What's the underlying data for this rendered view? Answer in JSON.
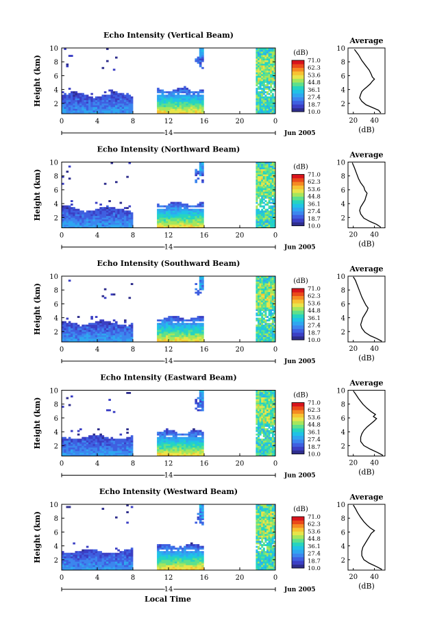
{
  "colors": {
    "scale": [
      "#2e2d8c",
      "#3b3fc4",
      "#3f5fe0",
      "#3c86ee",
      "#2fa6f0",
      "#20c2e6",
      "#26d4c0",
      "#5ee08c",
      "#a6e65c",
      "#e8e44a",
      "#f7c232",
      "#f58a22",
      "#ea4a1a",
      "#d8141c"
    ],
    "axis": "#000000",
    "profile_line": "#000000"
  },
  "chart_data": [
    {
      "type": "heatmap",
      "title": "Echo Intensity (Vertical Beam)",
      "ylabel": "Height (km)",
      "xlabel": "",
      "xlim": [
        0,
        24
      ],
      "ylim": [
        0.5,
        10
      ],
      "x_ticks": [
        "0",
        "4",
        "8",
        "12",
        "16",
        "20",
        "0"
      ],
      "y_ticks": [
        "2",
        "4",
        "6",
        "8",
        "10"
      ],
      "date_center": "14",
      "date_right": "Jun 2005",
      "colorbar": {
        "unit": "(dB)",
        "labels": [
          "71.0",
          "62.3",
          "53.6",
          "44.8",
          "36.1",
          "27.4",
          "18.7",
          "10.0"
        ],
        "range": [
          10,
          71
        ]
      },
      "segments": [
        {
          "start": 0,
          "end": 8,
          "kind": "night"
        },
        {
          "start": 10.7,
          "end": 15.8,
          "kind": "day"
        },
        {
          "start": 21.8,
          "end": 24,
          "kind": "late"
        }
      ],
      "profile": {
        "title": "Average",
        "xlabel": "(dB)",
        "x_ticks": [
          "20",
          "40"
        ],
        "xlim": [
          15,
          50
        ],
        "y_ticks": [
          "2",
          "4",
          "6",
          "8",
          "10"
        ],
        "ylim": [
          0.5,
          10
        ],
        "points": [
          [
            46,
            0.6
          ],
          [
            44,
            1.0
          ],
          [
            38,
            1.4
          ],
          [
            32,
            1.8
          ],
          [
            28,
            2.3
          ],
          [
            26,
            2.8
          ],
          [
            27,
            3.3
          ],
          [
            28,
            3.7
          ],
          [
            30,
            4.0
          ],
          [
            33,
            4.4
          ],
          [
            36,
            4.8
          ],
          [
            38,
            5.2
          ],
          [
            40,
            5.5
          ],
          [
            38,
            5.8
          ],
          [
            37,
            6.2
          ],
          [
            35,
            6.8
          ],
          [
            32,
            7.4
          ],
          [
            28,
            8.2
          ],
          [
            25,
            9.0
          ],
          [
            21,
            9.8
          ]
        ]
      }
    },
    {
      "type": "heatmap",
      "title": "Echo Intensity (Northward Beam)",
      "ylabel": "Height (km)",
      "xlabel": "",
      "xlim": [
        0,
        24
      ],
      "ylim": [
        0.5,
        10
      ],
      "x_ticks": [
        "0",
        "4",
        "8",
        "12",
        "16",
        "20",
        "0"
      ],
      "y_ticks": [
        "2",
        "4",
        "6",
        "8",
        "10"
      ],
      "date_center": "14",
      "date_right": "Jun 2005",
      "colorbar": {
        "unit": "(dB)",
        "labels": [
          "71.0",
          "62.3",
          "53.6",
          "44.8",
          "36.1",
          "27.4",
          "18.7",
          "10.0"
        ],
        "range": [
          10,
          71
        ]
      },
      "segments": [
        {
          "start": 0,
          "end": 8,
          "kind": "night"
        },
        {
          "start": 10.7,
          "end": 15.8,
          "kind": "day"
        },
        {
          "start": 21.8,
          "end": 24,
          "kind": "late"
        }
      ],
      "profile": {
        "title": "Average",
        "xlabel": "(dB)",
        "x_ticks": [
          "20",
          "40"
        ],
        "xlim": [
          15,
          50
        ],
        "y_ticks": [
          "2",
          "4",
          "6",
          "8",
          "10"
        ],
        "ylim": [
          0.5,
          10
        ],
        "points": [
          [
            46,
            0.6
          ],
          [
            42,
            1.0
          ],
          [
            36,
            1.4
          ],
          [
            30,
            1.9
          ],
          [
            27,
            2.5
          ],
          [
            26,
            3.0
          ],
          [
            27,
            3.5
          ],
          [
            29,
            4.0
          ],
          [
            31,
            4.5
          ],
          [
            32,
            5.0
          ],
          [
            33,
            5.5
          ],
          [
            31,
            5.9
          ],
          [
            30,
            6.4
          ],
          [
            27,
            7.0
          ],
          [
            25,
            7.6
          ],
          [
            23,
            8.4
          ],
          [
            21,
            9.2
          ],
          [
            19,
            9.9
          ]
        ]
      }
    },
    {
      "type": "heatmap",
      "title": "Echo Intensity (Southward Beam)",
      "ylabel": "Height (km)",
      "xlabel": "",
      "xlim": [
        0,
        24
      ],
      "ylim": [
        0.5,
        10
      ],
      "x_ticks": [
        "0",
        "4",
        "8",
        "12",
        "16",
        "20",
        "0"
      ],
      "y_ticks": [
        "2",
        "4",
        "6",
        "8",
        "10"
      ],
      "date_center": "14",
      "date_right": "Jun 2005",
      "colorbar": {
        "unit": "(dB)",
        "labels": [
          "71.0",
          "62.3",
          "53.6",
          "44.8",
          "36.1",
          "27.4",
          "18.7",
          "10.0"
        ],
        "range": [
          10,
          71
        ]
      },
      "segments": [
        {
          "start": 0,
          "end": 8,
          "kind": "night"
        },
        {
          "start": 10.7,
          "end": 15.8,
          "kind": "day"
        },
        {
          "start": 21.8,
          "end": 24,
          "kind": "late"
        }
      ],
      "profile": {
        "title": "Average",
        "xlabel": "(dB)",
        "x_ticks": [
          "20",
          "40"
        ],
        "xlim": [
          15,
          50
        ],
        "y_ticks": [
          "2",
          "4",
          "6",
          "8",
          "10"
        ],
        "ylim": [
          0.5,
          10
        ],
        "points": [
          [
            47,
            0.6
          ],
          [
            42,
            1.0
          ],
          [
            36,
            1.4
          ],
          [
            31,
            1.9
          ],
          [
            28,
            2.5
          ],
          [
            27,
            3.0
          ],
          [
            28,
            3.5
          ],
          [
            29,
            4.0
          ],
          [
            31,
            4.5
          ],
          [
            33,
            5.0
          ],
          [
            34,
            5.4
          ],
          [
            32,
            5.8
          ],
          [
            30,
            6.4
          ],
          [
            28,
            7.0
          ],
          [
            26,
            7.8
          ],
          [
            24,
            8.6
          ],
          [
            22,
            9.4
          ],
          [
            20,
            9.9
          ]
        ]
      }
    },
    {
      "type": "heatmap",
      "title": "Echo Intensity (Eastward Beam)",
      "ylabel": "Height (km)",
      "xlabel": "",
      "xlim": [
        0,
        24
      ],
      "ylim": [
        0.5,
        10
      ],
      "x_ticks": [
        "0",
        "4",
        "8",
        "12",
        "16",
        "20",
        "0"
      ],
      "y_ticks": [
        "2",
        "4",
        "6",
        "8",
        "10"
      ],
      "date_center": "14",
      "date_right": "Jun 2005",
      "colorbar": {
        "unit": "(dB)",
        "labels": [
          "71.0",
          "62.3",
          "53.6",
          "44.8",
          "36.1",
          "27.4",
          "18.7",
          "10.0"
        ],
        "range": [
          10,
          71
        ]
      },
      "segments": [
        {
          "start": 0,
          "end": 8,
          "kind": "night"
        },
        {
          "start": 10.7,
          "end": 15.8,
          "kind": "day"
        },
        {
          "start": 21.8,
          "end": 24,
          "kind": "late"
        }
      ],
      "profile": {
        "title": "Average",
        "xlabel": "(dB)",
        "x_ticks": [
          "20",
          "40"
        ],
        "xlim": [
          15,
          50
        ],
        "y_ticks": [
          "2",
          "4",
          "6",
          "8",
          "10"
        ],
        "ylim": [
          0.5,
          10
        ],
        "points": [
          [
            48,
            0.6
          ],
          [
            43,
            1.0
          ],
          [
            36,
            1.5
          ],
          [
            30,
            2.0
          ],
          [
            27,
            2.6
          ],
          [
            27,
            3.2
          ],
          [
            28,
            3.7
          ],
          [
            30,
            4.2
          ],
          [
            33,
            4.7
          ],
          [
            37,
            5.2
          ],
          [
            40,
            5.6
          ],
          [
            42,
            5.9
          ],
          [
            39,
            6.2
          ],
          [
            41,
            6.5
          ],
          [
            37,
            6.9
          ],
          [
            33,
            7.4
          ],
          [
            29,
            8.0
          ],
          [
            25,
            8.8
          ],
          [
            22,
            9.5
          ],
          [
            20,
            9.9
          ]
        ]
      }
    },
    {
      "type": "heatmap",
      "title": "Echo Intensity (Westward Beam)",
      "ylabel": "Height (km)",
      "xlabel": "Local Time",
      "xlim": [
        0,
        24
      ],
      "ylim": [
        0.5,
        10
      ],
      "x_ticks": [
        "0",
        "4",
        "8",
        "12",
        "16",
        "20",
        "0"
      ],
      "y_ticks": [
        "2",
        "4",
        "6",
        "8",
        "10"
      ],
      "date_center": "14",
      "date_right": "Jun 2005",
      "colorbar": {
        "unit": "(dB)",
        "labels": [
          "71.0",
          "62.3",
          "53.6",
          "44.8",
          "36.1",
          "27.4",
          "18.7",
          "10.0"
        ],
        "range": [
          10,
          71
        ]
      },
      "segments": [
        {
          "start": 0,
          "end": 8,
          "kind": "night"
        },
        {
          "start": 10.7,
          "end": 15.8,
          "kind": "day"
        },
        {
          "start": 21.8,
          "end": 24,
          "kind": "late"
        }
      ],
      "profile": {
        "title": "Average",
        "xlabel": "(dB)",
        "x_ticks": [
          "20",
          "40"
        ],
        "xlim": [
          15,
          50
        ],
        "y_ticks": [
          "2",
          "4",
          "6",
          "8",
          "10"
        ],
        "ylim": [
          0.5,
          10
        ],
        "points": [
          [
            47,
            0.6
          ],
          [
            42,
            1.0
          ],
          [
            35,
            1.5
          ],
          [
            30,
            2.0
          ],
          [
            28,
            2.6
          ],
          [
            28,
            3.2
          ],
          [
            29,
            3.8
          ],
          [
            31,
            4.3
          ],
          [
            33,
            4.8
          ],
          [
            35,
            5.3
          ],
          [
            37,
            5.8
          ],
          [
            40,
            6.2
          ],
          [
            36,
            6.6
          ],
          [
            33,
            7.0
          ],
          [
            30,
            7.5
          ],
          [
            27,
            8.1
          ],
          [
            24,
            8.8
          ],
          [
            22,
            9.4
          ],
          [
            20,
            9.9
          ]
        ]
      }
    }
  ]
}
